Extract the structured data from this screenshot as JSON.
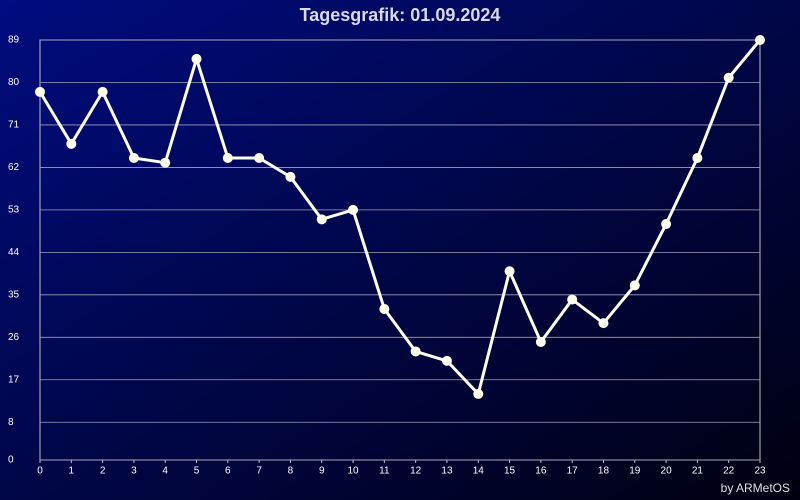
{
  "chart_data": {
    "type": "line",
    "title": "Tagesgrafik: 01.09.2024",
    "credit": "by ARMetOS",
    "x": [
      0,
      1,
      2,
      3,
      4,
      5,
      6,
      7,
      8,
      9,
      10,
      11,
      12,
      13,
      14,
      15,
      16,
      17,
      18,
      19,
      20,
      21,
      22,
      23
    ],
    "series": [
      {
        "color": "#fffff0",
        "values": [
          78,
          67,
          78,
          64,
          63,
          85,
          64,
          64,
          60,
          51,
          53,
          32,
          23,
          21,
          14,
          40,
          25,
          34,
          29,
          37,
          50,
          64,
          81,
          89
        ]
      }
    ],
    "xlim": [
      0,
      23
    ],
    "xticks": [
      0,
      1,
      2,
      3,
      4,
      5,
      6,
      7,
      8,
      9,
      10,
      11,
      12,
      13,
      14,
      15,
      16,
      17,
      18,
      19,
      20,
      21,
      22,
      23
    ],
    "ylim": [
      0,
      89
    ],
    "yticks": [
      0,
      8,
      17,
      26,
      35,
      44,
      53,
      62,
      71,
      80,
      89
    ],
    "grid": true
  }
}
